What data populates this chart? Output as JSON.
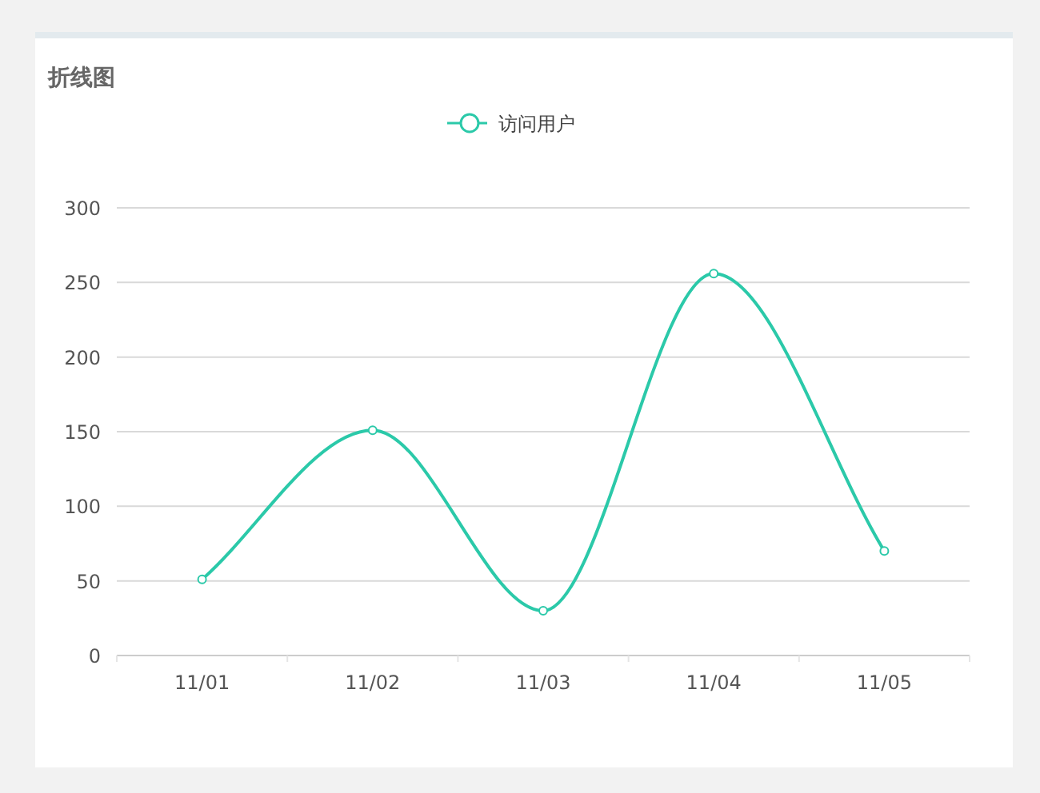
{
  "chart_data": {
    "type": "line",
    "title": "折线图",
    "categories": [
      "11/01",
      "11/02",
      "11/03",
      "11/04",
      "11/05"
    ],
    "series": [
      {
        "name": "访问用户",
        "color": "#2bc9a9",
        "values": [
          51,
          151,
          30,
          256,
          70
        ]
      }
    ],
    "ylim": [
      0,
      300
    ],
    "yticks": [
      0,
      50,
      100,
      150,
      200,
      250,
      300
    ],
    "grid": "y",
    "legend": "top",
    "marker": "circle",
    "line_style": "solid"
  }
}
